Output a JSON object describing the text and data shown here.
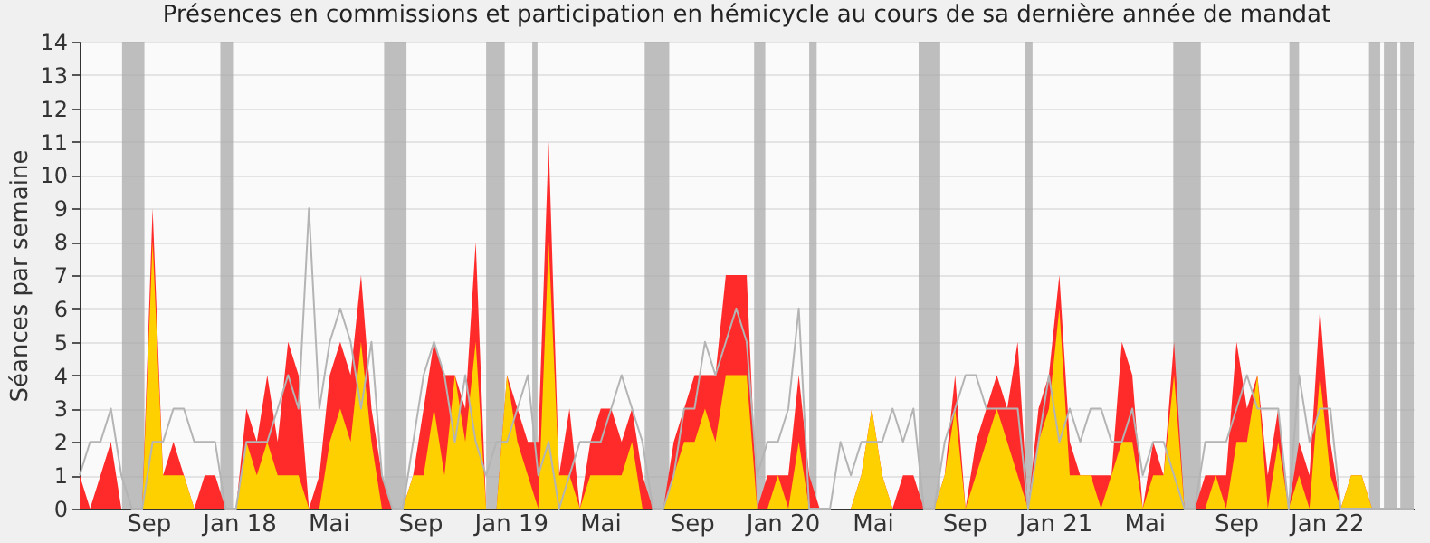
{
  "chart_data": {
    "type": "area",
    "title": "Présences en commissions et participation en hémicycle au cours de sa dernière année de mandat",
    "ylabel": "Séances par semaine",
    "x": [
      "2017-06-01",
      "2017-06-15",
      "2017-06-29",
      "2017-07-13",
      "2017-07-27",
      "2017-08-10",
      "2017-08-24",
      "2017-09-07",
      "2017-09-21",
      "2017-10-05",
      "2017-10-19",
      "2017-11-02",
      "2017-11-16",
      "2017-11-30",
      "2017-12-14",
      "2017-12-28",
      "2018-01-11",
      "2018-01-25",
      "2018-02-08",
      "2018-02-22",
      "2018-03-08",
      "2018-03-22",
      "2018-04-05",
      "2018-04-19",
      "2018-05-03",
      "2018-05-17",
      "2018-05-31",
      "2018-06-14",
      "2018-06-28",
      "2018-07-12",
      "2018-07-26",
      "2018-08-09",
      "2018-08-23",
      "2018-09-06",
      "2018-09-20",
      "2018-10-04",
      "2018-10-18",
      "2018-11-01",
      "2018-11-15",
      "2018-11-29",
      "2018-12-13",
      "2018-12-27",
      "2019-01-10",
      "2019-01-24",
      "2019-02-07",
      "2019-02-21",
      "2019-03-07",
      "2019-03-21",
      "2019-04-04",
      "2019-04-18",
      "2019-05-02",
      "2019-05-16",
      "2019-05-30",
      "2019-06-13",
      "2019-06-27",
      "2019-07-11",
      "2019-07-25",
      "2019-08-08",
      "2019-08-22",
      "2019-09-05",
      "2019-09-19",
      "2019-10-03",
      "2019-10-17",
      "2019-10-31",
      "2019-11-14",
      "2019-11-28",
      "2019-12-12",
      "2019-12-26",
      "2020-01-09",
      "2020-01-23",
      "2020-02-06",
      "2020-02-20",
      "2020-03-05",
      "2020-03-19",
      "2020-04-02",
      "2020-04-16",
      "2020-04-30",
      "2020-05-14",
      "2020-05-28",
      "2020-06-11",
      "2020-06-25",
      "2020-07-09",
      "2020-07-23",
      "2020-08-06",
      "2020-08-20",
      "2020-09-03",
      "2020-09-17",
      "2020-10-01",
      "2020-10-15",
      "2020-10-29",
      "2020-11-12",
      "2020-11-26",
      "2020-12-10",
      "2020-12-24",
      "2021-01-07",
      "2021-01-21",
      "2021-02-04",
      "2021-02-18",
      "2021-03-04",
      "2021-03-18",
      "2021-04-01",
      "2021-04-15",
      "2021-04-29",
      "2021-05-13",
      "2021-05-27",
      "2021-06-10",
      "2021-06-24",
      "2021-07-08",
      "2021-07-22",
      "2021-08-05",
      "2021-08-19",
      "2021-09-02",
      "2021-09-16",
      "2021-09-30",
      "2021-10-14",
      "2021-10-28",
      "2021-11-11",
      "2021-11-25",
      "2021-12-09",
      "2021-12-23",
      "2022-01-06",
      "2022-01-20",
      "2022-02-03",
      "2022-02-17",
      "2022-03-03",
      "2022-03-17",
      "2022-03-31",
      "2022-04-14",
      "2022-04-28"
    ],
    "series": [
      {
        "color": "#ff2a2a",
        "values": [
          1,
          0,
          1,
          2,
          0,
          0,
          0,
          9,
          1,
          2,
          1,
          0,
          1,
          1,
          0,
          0,
          3,
          2,
          4,
          2,
          5,
          4,
          0,
          1,
          4,
          5,
          4,
          7,
          3,
          1,
          0,
          0,
          1,
          3,
          5,
          4,
          4,
          3,
          8,
          0,
          0,
          4,
          3,
          2,
          2,
          11,
          1,
          3,
          0,
          2,
          3,
          3,
          2,
          3,
          1,
          0,
          0,
          2,
          3,
          4,
          4,
          4,
          7,
          7,
          7,
          0,
          1,
          1,
          1,
          4,
          1,
          0,
          0,
          0,
          0,
          1,
          3,
          1,
          0,
          1,
          1,
          0,
          0,
          1,
          4,
          0,
          2,
          3,
          4,
          3,
          5,
          0,
          3,
          4,
          7,
          2,
          1,
          1,
          1,
          1,
          5,
          4,
          0,
          2,
          1,
          5,
          0,
          0,
          1,
          1,
          1,
          5,
          3,
          4,
          1,
          3,
          0,
          2,
          1,
          6,
          2,
          0,
          1,
          1,
          0,
          0,
          0,
          0,
          0
        ]
      },
      {
        "color": "#ffd000",
        "values": [
          0,
          0,
          0,
          0,
          0,
          0,
          0,
          8,
          1,
          1,
          1,
          0,
          0,
          0,
          0,
          0,
          2,
          1,
          2,
          1,
          1,
          1,
          0,
          0,
          2,
          3,
          2,
          5,
          2,
          0,
          0,
          0,
          1,
          1,
          3,
          1,
          4,
          2,
          5,
          0,
          0,
          4,
          2,
          1,
          0,
          8,
          1,
          1,
          0,
          1,
          1,
          1,
          1,
          2,
          0,
          0,
          0,
          1,
          2,
          2,
          3,
          2,
          4,
          4,
          4,
          0,
          0,
          1,
          0,
          2,
          0,
          0,
          0,
          0,
          0,
          1,
          3,
          1,
          0,
          0,
          0,
          0,
          0,
          1,
          3,
          0,
          1,
          2,
          3,
          2,
          1,
          0,
          2,
          3,
          6,
          1,
          1,
          1,
          0,
          1,
          2,
          2,
          0,
          1,
          1,
          4,
          0,
          0,
          0,
          1,
          0,
          2,
          2,
          4,
          0,
          2,
          0,
          1,
          0,
          4,
          1,
          0,
          1,
          1,
          0,
          0,
          0,
          0,
          0
        ]
      },
      {
        "type": "line",
        "color": "#b4b4b4",
        "values": [
          1,
          2,
          2,
          3,
          1,
          0,
          0,
          2,
          2,
          3,
          3,
          2,
          2,
          2,
          0,
          0,
          2,
          2,
          2,
          3,
          4,
          3,
          9,
          3,
          5,
          6,
          5,
          3,
          5,
          1,
          0,
          0,
          2,
          4,
          5,
          4,
          2,
          4,
          2,
          1,
          2,
          2,
          3,
          4,
          1,
          2,
          0,
          1,
          2,
          2,
          2,
          3,
          4,
          3,
          2,
          0,
          0,
          1,
          3,
          3,
          5,
          4,
          5,
          6,
          5,
          1,
          2,
          2,
          3,
          6,
          0,
          0,
          0,
          2,
          1,
          2,
          2,
          2,
          3,
          2,
          3,
          0,
          0,
          2,
          3,
          4,
          4,
          3,
          3,
          3,
          3,
          0,
          2,
          4,
          2,
          3,
          2,
          3,
          3,
          2,
          2,
          3,
          1,
          2,
          2,
          1,
          0,
          0,
          2,
          2,
          2,
          3,
          4,
          3,
          3,
          3,
          0,
          4,
          2,
          3,
          3,
          0,
          0,
          0,
          0,
          0,
          0,
          0,
          0
        ]
      }
    ],
    "xlim": [
      "2017-06-01",
      "2022-04-28"
    ],
    "xticks": [
      {
        "value": "2017-09-01",
        "label": "Sep"
      },
      {
        "value": "2018-01-01",
        "label": "Jan 18"
      },
      {
        "value": "2018-05-01",
        "label": "Mai"
      },
      {
        "value": "2018-09-01",
        "label": "Sep"
      },
      {
        "value": "2019-01-01",
        "label": "Jan 19"
      },
      {
        "value": "2019-05-01",
        "label": "Mai"
      },
      {
        "value": "2019-09-01",
        "label": "Sep"
      },
      {
        "value": "2020-01-01",
        "label": "Jan 20"
      },
      {
        "value": "2020-05-01",
        "label": "Mai"
      },
      {
        "value": "2020-09-01",
        "label": "Sep"
      },
      {
        "value": "2021-01-01",
        "label": "Jan 21"
      },
      {
        "value": "2021-05-01",
        "label": "Mai"
      },
      {
        "value": "2021-09-01",
        "label": "Sep"
      },
      {
        "value": "2022-01-01",
        "label": "Jan 22"
      }
    ],
    "ylim": [
      0,
      14
    ],
    "yticks": [
      0,
      1,
      2,
      3,
      4,
      5,
      6,
      7,
      8,
      9,
      10,
      11,
      12,
      13,
      14
    ],
    "grid": "y",
    "bands": [
      {
        "axis": "x",
        "from": "2017-07-28",
        "to": "2017-08-27",
        "color": "#aaaaaa"
      },
      {
        "axis": "x",
        "from": "2017-12-07",
        "to": "2017-12-24",
        "color": "#aaaaaa"
      },
      {
        "axis": "x",
        "from": "2018-07-15",
        "to": "2018-08-14",
        "color": "#aaaaaa"
      },
      {
        "axis": "x",
        "from": "2018-11-29",
        "to": "2018-12-24",
        "color": "#aaaaaa"
      },
      {
        "axis": "x",
        "from": "2019-01-30",
        "to": "2019-02-06",
        "color": "#aaaaaa"
      },
      {
        "axis": "x",
        "from": "2019-06-30",
        "to": "2019-08-02",
        "color": "#aaaaaa"
      },
      {
        "axis": "x",
        "from": "2019-11-24",
        "to": "2019-12-09",
        "color": "#aaaaaa"
      },
      {
        "axis": "x",
        "from": "2020-02-06",
        "to": "2020-02-16",
        "color": "#aaaaaa"
      },
      {
        "axis": "x",
        "from": "2020-07-02",
        "to": "2020-07-31",
        "color": "#aaaaaa"
      },
      {
        "axis": "x",
        "from": "2020-11-22",
        "to": "2020-12-02",
        "color": "#aaaaaa"
      },
      {
        "axis": "x",
        "from": "2021-06-09",
        "to": "2021-07-16",
        "color": "#aaaaaa"
      },
      {
        "axis": "x",
        "from": "2021-11-12",
        "to": "2021-11-25",
        "color": "#aaaaaa"
      },
      {
        "axis": "x",
        "from": "2022-02-27",
        "to": "2022-03-14",
        "color": "#aaaaaa"
      },
      {
        "axis": "x",
        "from": "2022-03-19",
        "to": "2022-04-05",
        "color": "#aaaaaa"
      },
      {
        "axis": "x",
        "from": "2022-04-10",
        "to": "2022-04-28",
        "color": "#aaaaaa"
      }
    ]
  }
}
